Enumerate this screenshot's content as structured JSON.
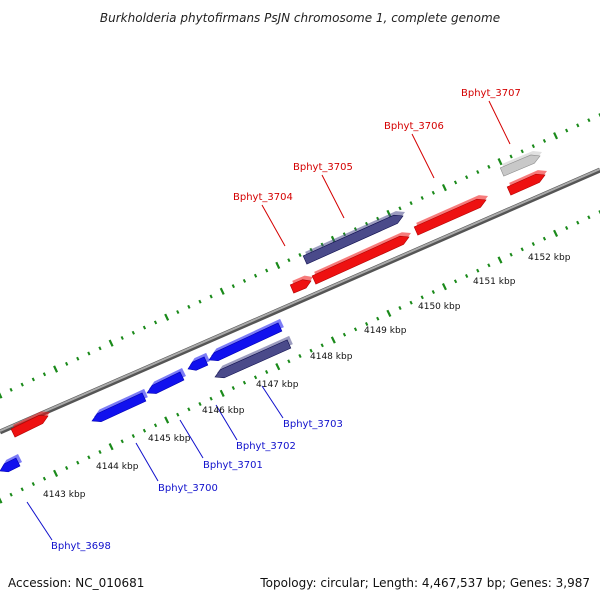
{
  "title": "Burkholderia phytofirmans PsJN chromosome 1, complete genome",
  "footer": {
    "accession": "Accession: NC_010681",
    "summary": "Topology: circular; Length: 4,467,537 bp; Genes: 3,987"
  },
  "colors": {
    "forward_gene": "#ee1111",
    "reverse_gene": "#1111ee",
    "rna_or_other": "#4a4a8a",
    "pseudo": "#c8c8c8",
    "backbone": "#888888",
    "dotted_track": "#1a8a1a"
  },
  "kbp_ticks": [
    "4143 kbp",
    "4144 kbp",
    "4145 kbp",
    "4146 kbp",
    "4147 kbp",
    "4148 kbp",
    "4149 kbp",
    "4150 kbp",
    "4151 kbp",
    "4152 kbp"
  ],
  "gene_labels": [
    {
      "id": "Bphyt_3698",
      "side": "bottom"
    },
    {
      "id": "Bphyt_3700",
      "side": "bottom"
    },
    {
      "id": "Bphyt_3701",
      "side": "bottom"
    },
    {
      "id": "Bphyt_3702",
      "side": "bottom"
    },
    {
      "id": "Bphyt_3703",
      "side": "bottom"
    },
    {
      "id": "Bphyt_3704",
      "side": "top"
    },
    {
      "id": "Bphyt_3705",
      "side": "top"
    },
    {
      "id": "Bphyt_3706",
      "side": "top"
    },
    {
      "id": "Bphyt_3707",
      "side": "top"
    }
  ],
  "genes": [
    {
      "name": "gene-left-red",
      "strand": "forward",
      "color_key": "forward_gene"
    },
    {
      "name": "gene-bphyt-3698",
      "strand": "reverse",
      "color_key": "reverse_gene"
    },
    {
      "name": "gene-bphyt-3700",
      "strand": "reverse",
      "color_key": "reverse_gene"
    },
    {
      "name": "gene-bphyt-3701",
      "strand": "reverse",
      "color_key": "reverse_gene"
    },
    {
      "name": "gene-bphyt-3702-a",
      "strand": "reverse",
      "color_key": "reverse_gene"
    },
    {
      "name": "gene-bphyt-3702-b",
      "strand": "reverse",
      "color_key": "reverse_gene"
    },
    {
      "name": "gene-bphyt-3703",
      "strand": "reverse",
      "color_key": "rna_or_other"
    },
    {
      "name": "gene-bphyt-3704-small",
      "strand": "forward",
      "color_key": "forward_gene"
    },
    {
      "name": "gene-bphyt-3704",
      "strand": "forward",
      "color_key": "forward_gene"
    },
    {
      "name": "gene-bphyt-3705",
      "strand": "forward",
      "color_key": "rna_or_other"
    },
    {
      "name": "gene-bphyt-3706",
      "strand": "forward",
      "color_key": "forward_gene"
    },
    {
      "name": "gene-bphyt-3707-gray",
      "strand": "forward",
      "color_key": "pseudo"
    },
    {
      "name": "gene-bphyt-3707",
      "strand": "forward",
      "color_key": "forward_gene"
    }
  ]
}
